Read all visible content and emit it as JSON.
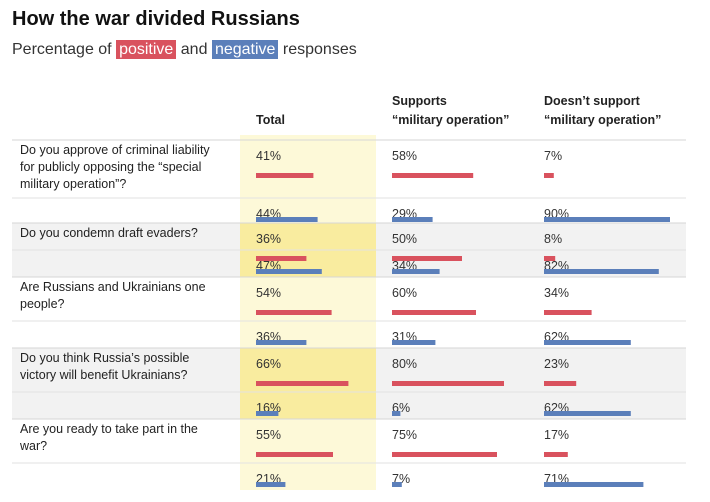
{
  "header": {
    "title": "How the war divided Russians",
    "subtitle_prefix": "Percentage of",
    "positive_label": "positive",
    "subtitle_and": "and",
    "negative_label": "negative",
    "subtitle_suffix": "responses"
  },
  "colors": {
    "positive": "#d9525e",
    "negative": "#5b7fba",
    "total_column_bg": "#fdf9d8",
    "total_column_shaded_bg": "#f9ec9f",
    "shaded_row_bg": "#f2f2f2"
  },
  "chart_data": {
    "type": "bar",
    "columns": [
      [
        "Total"
      ],
      [
        "Supports",
        "“military operation”"
      ],
      [
        "Doesn’t support",
        "“military operation”"
      ]
    ],
    "questions": [
      {
        "text": [
          "Do you approve of criminal liability",
          "for publicly opposing the “special",
          "military operation”?"
        ],
        "shaded": false,
        "positive": [
          41,
          58,
          7
        ],
        "negative": [
          44,
          29,
          90
        ]
      },
      {
        "text": [
          "Do you condemn draft evaders?"
        ],
        "shaded": true,
        "positive": [
          36,
          50,
          8
        ],
        "negative": [
          47,
          34,
          82
        ]
      },
      {
        "text": [
          "Are Russians and Ukrainians one",
          "people?"
        ],
        "shaded": false,
        "positive": [
          54,
          60,
          34
        ],
        "negative": [
          36,
          31,
          62
        ]
      },
      {
        "text": [
          "Do you think Russia’s possible",
          "victory will benefit Ukrainians?"
        ],
        "shaded": true,
        "positive": [
          66,
          80,
          23
        ],
        "negative": [
          16,
          6,
          62
        ]
      },
      {
        "text": [
          "Are you ready to take part in the",
          "war?"
        ],
        "shaded": false,
        "positive": [
          55,
          75,
          17
        ],
        "negative": [
          21,
          7,
          71
        ]
      }
    ],
    "value_suffix": "%",
    "xlim": [
      0,
      100
    ]
  }
}
